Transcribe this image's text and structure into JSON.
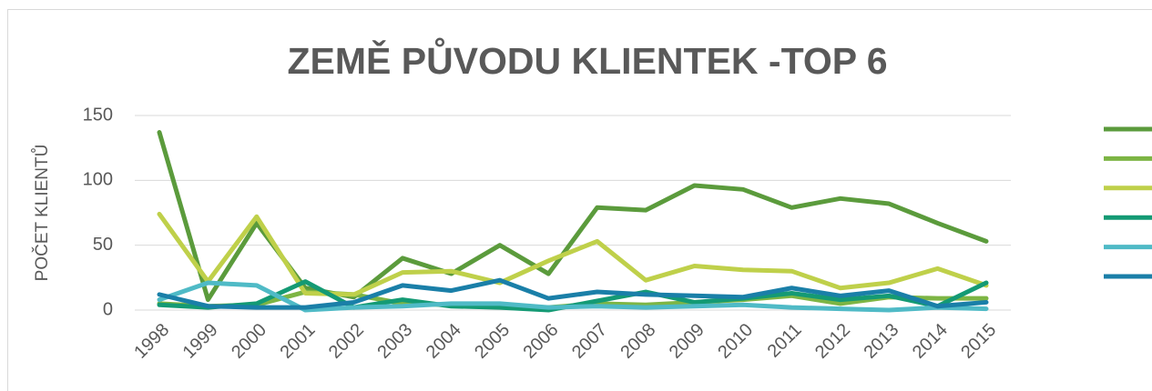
{
  "chart_data": {
    "type": "line",
    "title": "ZEMĚ PŮVODU KLIENTEK -TOP 6",
    "y_label": "POČET KLIENTŮ",
    "categories": [
      "1998",
      "1999",
      "2000",
      "2001",
      "2002",
      "2003",
      "2004",
      "2005",
      "2006",
      "2007",
      "2008",
      "2009",
      "2010",
      "2011",
      "2012",
      "2013",
      "2014",
      "2015"
    ],
    "ylim": [
      0,
      150
    ],
    "yticks": [
      0,
      50,
      100,
      150
    ],
    "grid": true,
    "legend": "right",
    "series": [
      {
        "color": "#5b9b3c",
        "values": [
          137,
          8,
          67,
          17,
          10,
          40,
          28,
          50,
          28,
          79,
          77,
          96,
          93,
          79,
          86,
          82,
          67,
          53
        ]
      },
      {
        "color": "#7db544",
        "values": [
          5,
          3,
          4,
          14,
          12,
          5,
          4,
          3,
          2,
          5,
          4,
          6,
          8,
          11,
          5,
          10,
          9,
          9
        ]
      },
      {
        "color": "#bfd04a",
        "values": [
          74,
          22,
          72,
          13,
          12,
          29,
          30,
          21,
          38,
          53,
          23,
          34,
          31,
          30,
          17,
          21,
          32,
          19
        ]
      },
      {
        "color": "#149a74",
        "values": [
          4,
          2,
          5,
          22,
          2,
          8,
          3,
          2,
          0,
          7,
          14,
          6,
          9,
          13,
          8,
          11,
          3,
          21
        ]
      },
      {
        "color": "#4fbac6",
        "values": [
          8,
          21,
          19,
          0,
          2,
          3,
          5,
          5,
          2,
          3,
          2,
          3,
          4,
          2,
          1,
          0,
          2,
          1
        ]
      },
      {
        "color": "#1a7fa8",
        "values": [
          12,
          3,
          2,
          2,
          6,
          19,
          15,
          23,
          9,
          14,
          12,
          11,
          10,
          17,
          11,
          15,
          3,
          6
        ]
      }
    ]
  }
}
